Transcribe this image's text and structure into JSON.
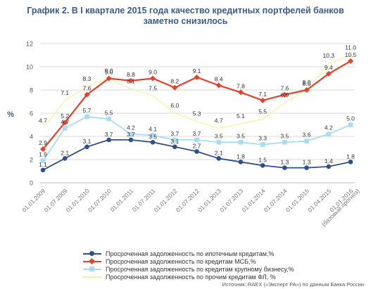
{
  "title_line1": "График 2. В I квартале 2015 года качество кредитных портфелей банков",
  "title_line2": "заметно снизилось",
  "source": "Источник: RAEX («Эксперт РА») по данным Банка России",
  "chart_data": {
    "type": "line",
    "ylabel": "%",
    "xlabel": "",
    "ylim": [
      0,
      12
    ],
    "yticks": [
      0,
      2,
      4,
      6,
      8,
      10,
      12
    ],
    "grid": "horizontal",
    "legend_position": "bottom",
    "categories": [
      "01.01.2009",
      "01.07.2009",
      "01.01.2010",
      "01.07.2010",
      "01.01.2011",
      "01.07.2011",
      "01.01.2012",
      "01.07.2012",
      "01.01.2013",
      "01.07.2013",
      "01.01.2014",
      "01.07.2014",
      "01.01.2015",
      "01.04.2015",
      "01.01.2016"
    ],
    "category_sublabels": {
      "14": "(базовый прогноз)"
    },
    "series": [
      {
        "name": "Просроченная задолженность по ипотечным кредитам,%",
        "color": "#2e4f8e",
        "marker": "circle",
        "values": [
          1.1,
          2.1,
          3.1,
          3.7,
          3.7,
          3.5,
          3.1,
          2.7,
          2.1,
          1.8,
          1.5,
          1.3,
          1.3,
          1.4,
          1.8
        ]
      },
      {
        "name": "Просроченная задолженность по кредитам МСБ,%",
        "color": "#e8402a",
        "marker": "diamond",
        "values": [
          2.9,
          5.2,
          7.6,
          9.0,
          8.8,
          9.0,
          8.2,
          9.1,
          8.4,
          7.8,
          7.1,
          7.6,
          8.0,
          9.4,
          10.5
        ]
      },
      {
        "name": "Просроченная задолженность по кредитам крупному бизнесу,%",
        "color": "#a8dcf4",
        "marker": "square",
        "values": [
          1.9,
          4.7,
          5.7,
          5.5,
          4.2,
          4.1,
          3.7,
          3.7,
          3.5,
          3.5,
          3.3,
          3.5,
          3.6,
          4.2,
          5.0
        ]
      },
      {
        "name": "Просроченная задолженность по прочим кредитам ФЛ, %",
        "color": "#f7f2a0",
        "marker": "none",
        "values": [
          4.7,
          7.1,
          8.3,
          9.0,
          8.1,
          7.5,
          6.0,
          5.3,
          4.7,
          5.1,
          5.5,
          6.9,
          8.0,
          10.3,
          11.0
        ]
      }
    ]
  }
}
